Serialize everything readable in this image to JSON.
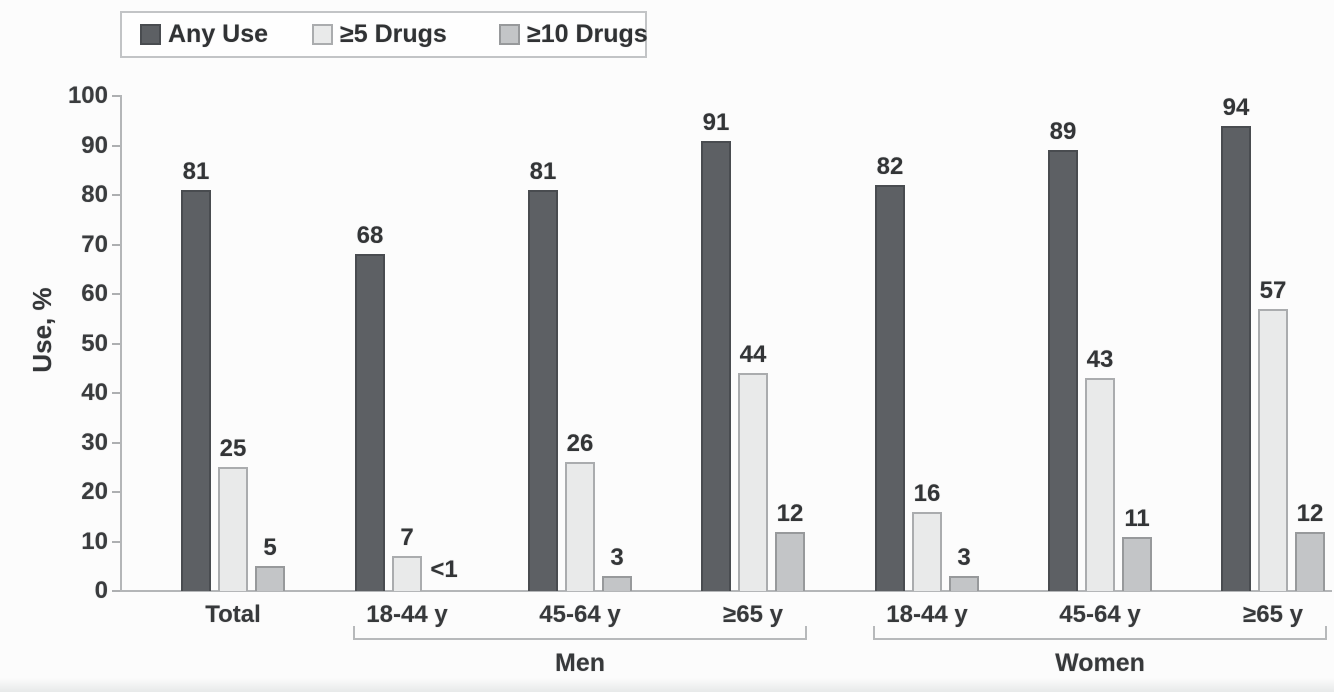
{
  "chart_data": {
    "type": "bar",
    "title": "",
    "ylabel": "Use, %",
    "ylim": [
      0,
      100
    ],
    "ytick_interval": 10,
    "grid": false,
    "legend_position": "top-left",
    "categories": [
      "Total",
      "18-44 y",
      "45-64 y",
      "≥65 y",
      "18-44 y",
      "45-64 y",
      "≥65 y"
    ],
    "series": [
      {
        "name": "Any Use",
        "color": "#5d6064",
        "border_color": "#494c50",
        "values": [
          81,
          68,
          81,
          91,
          82,
          89,
          94
        ]
      },
      {
        "name": "≥5 Drugs",
        "color": "#e9eaea",
        "border_color": "#aaacae",
        "values": [
          25,
          7,
          26,
          44,
          16,
          43,
          57
        ]
      },
      {
        "name": "≥10 Drugs",
        "color": "#c3c5c7",
        "border_color": "#97999b",
        "values": [
          5,
          "<1",
          3,
          12,
          3,
          11,
          12
        ]
      }
    ],
    "group_brackets": [
      {
        "label": "Men",
        "from_category": 1,
        "to_category": 3
      },
      {
        "label": "Women",
        "from_category": 4,
        "to_category": 6
      }
    ]
  }
}
